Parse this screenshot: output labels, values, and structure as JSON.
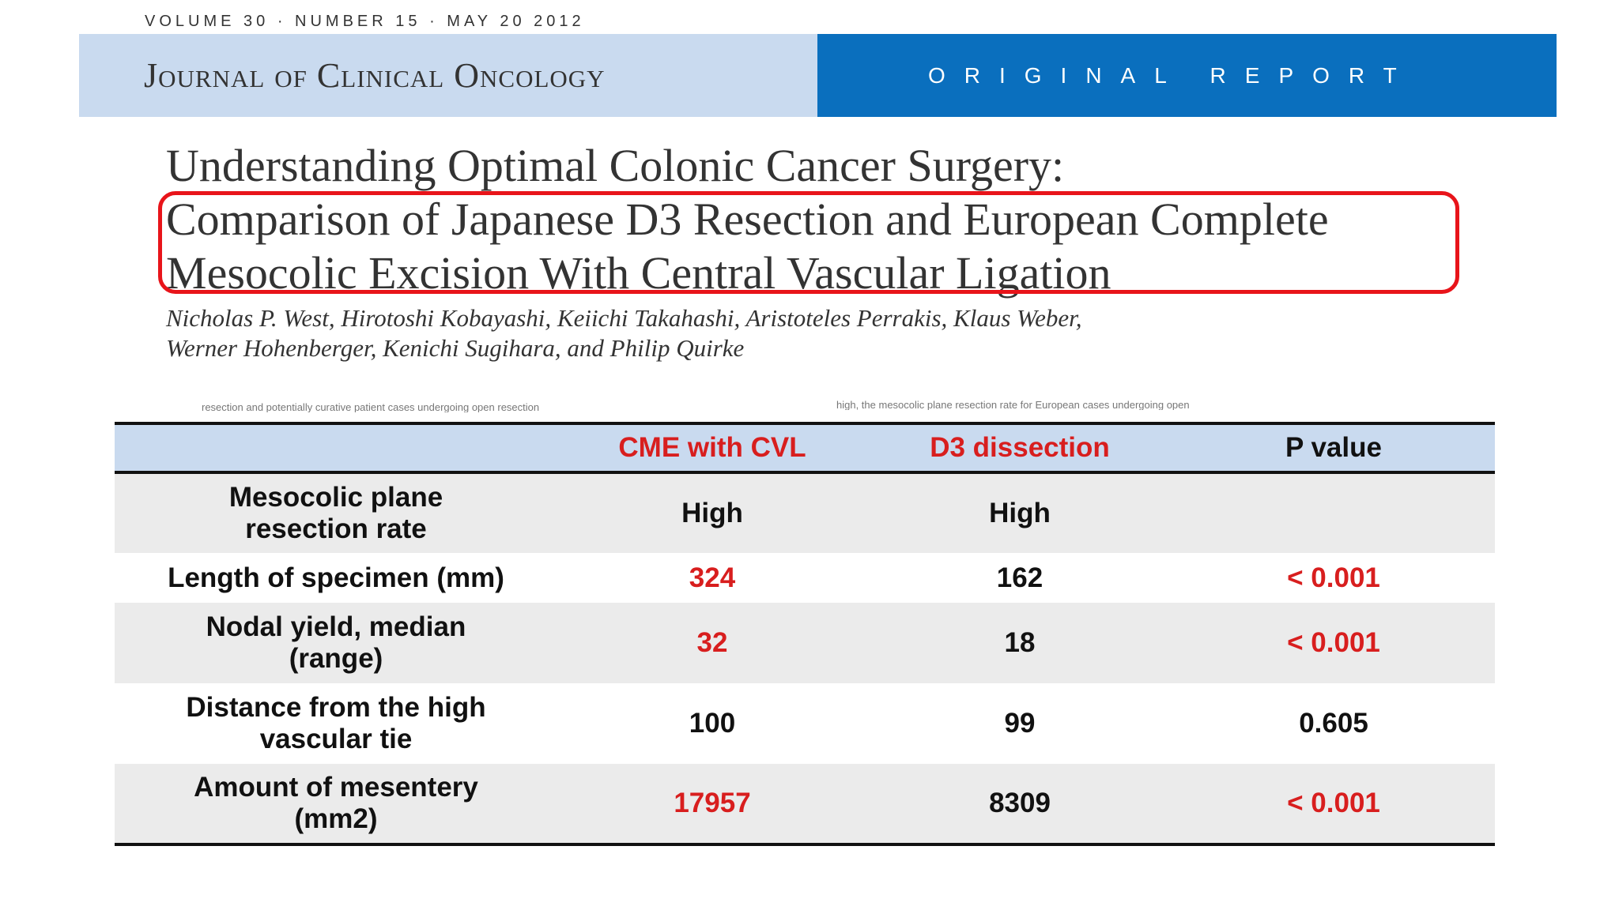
{
  "issue_line": "VOLUME 30 · NUMBER 15 · MAY 20 2012",
  "masthead": {
    "journal": "Journal of Clinical Oncology",
    "report_type": "ORIGINAL REPORT",
    "colors": {
      "left_band": "#c9daef",
      "right_band": "#0a6fbe"
    }
  },
  "article": {
    "title_lines": [
      "Understanding Optimal Colonic Cancer Surgery:",
      "Comparison of Japanese D3 Resection and European Complete",
      "Mesocolic Excision With Central Vascular Ligation"
    ],
    "highlight_color": "#e8141a",
    "authors_lines": [
      "Nicholas P. West, Hirotoshi Kobayashi, Keiichi Takahashi, Aristoteles Perrakis, Klaus Weber,",
      "Werner Hohenberger, Kenichi Sugihara, and Philip Quirke"
    ]
  },
  "faded_fragments": {
    "left": "resection and potentially curative patient cases undergoing open resection",
    "right": "high, the mesocolic plane resection rate for European cases undergoing open"
  },
  "table": {
    "headers": [
      "",
      "CME with CVL",
      "D3 dissection",
      "P value"
    ],
    "rows": [
      {
        "label_lines": [
          "Mesocolic plane",
          "resection rate"
        ],
        "cme": "High",
        "d3": "High",
        "p": "",
        "cme_red": false,
        "p_red": false
      },
      {
        "label_lines": [
          "Length of specimen (mm)"
        ],
        "cme": "324",
        "d3": "162",
        "p": "< 0.001",
        "cme_red": true,
        "p_red": true
      },
      {
        "label_lines": [
          "Nodal yield, median",
          "(range)"
        ],
        "cme": "32",
        "d3": "18",
        "p": "< 0.001",
        "cme_red": true,
        "p_red": true
      },
      {
        "label_lines": [
          "Distance from the high",
          "vascular tie"
        ],
        "cme": "100",
        "d3": "99",
        "p": "0.605",
        "cme_red": false,
        "p_red": false
      },
      {
        "label_lines": [
          "Amount of mesentery",
          "(mm2)"
        ],
        "cme": "17957",
        "d3": "8309",
        "p": "< 0.001",
        "cme_red": true,
        "p_red": true
      }
    ],
    "colors": {
      "header_bg": "#c9daef",
      "shaded_row": "#ebebeb",
      "emphasis": "#d81e1e"
    }
  }
}
